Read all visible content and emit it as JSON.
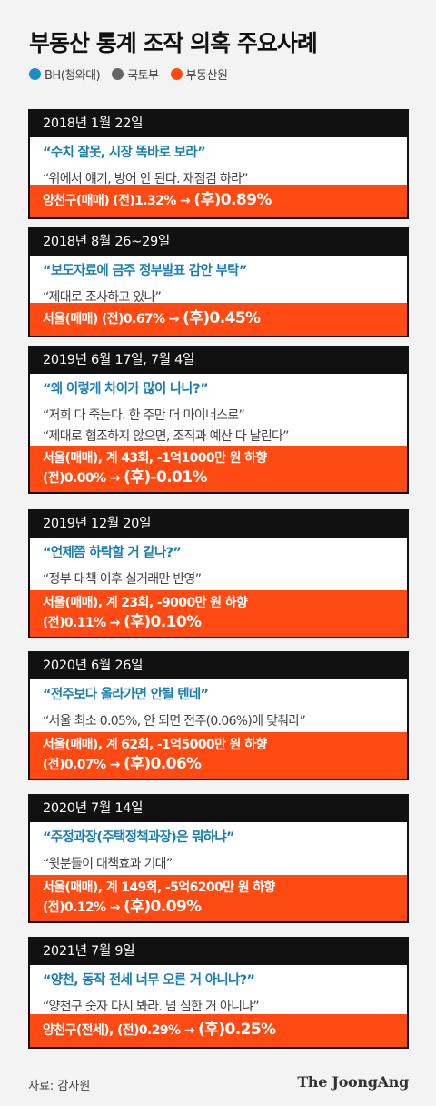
{
  "title": "부동산 통계 조작 의혹 주요사례",
  "legend": [
    {
      "label": "BH(청와대)",
      "color": "#1a8ec0"
    },
    {
      "label": "국토부",
      "color": "#666666"
    },
    {
      "label": "부동산원",
      "color": "#ff4a13"
    }
  ],
  "cases": [
    {
      "date": "2018년 1월 22일",
      "quote_bh": "“수치 잘못, 시장 똑바로 보라”",
      "quotes_gov": [
        "“위에서 얘기, 방어 안 된다. 재점검 하라”"
      ],
      "result_line1": "양천구(매매)  (전)1.32% → ",
      "result_after": "(후)0.89%",
      "result_line2": ""
    },
    {
      "date": "2018년 8월 26~29일",
      "quote_bh": "“보도자료에 금주 정부발표 감안 부탁”",
      "quotes_gov": [
        "“제대로 조사하고 있나”"
      ],
      "result_line1": "서울(매매) (전)0.67% → ",
      "result_after": "(후)0.45%",
      "result_line2": ""
    },
    {
      "date": "2019년 6월 17일, 7월 4일",
      "quote_bh": "“왜 이렇게 차이가 많이 나나?”",
      "quotes_gov": [
        "“저희 다 죽는다. 한 주만 더 마이너스로”",
        "“제대로 협조하지 않으면, 조직과 예산 다 날린다”"
      ],
      "result_line1": "서울(매매), 계 43회, -1억1000만 원 하향",
      "result_line2": "(전)0.00% → ",
      "result_after": "(후)-0.01%"
    },
    {
      "date": "2019년 12월 20일",
      "quote_bh": "“언제쯤 하락할 거 같나?”",
      "quotes_gov": [
        "“정부 대책 이후 실거래만 반영”"
      ],
      "result_line1": "서울(매매), 계 23회, -9000만 원 하향",
      "result_line2": "(전)0.11% → ",
      "result_after": "(후)0.10%"
    },
    {
      "date": "2020년 6월 26일",
      "quote_bh": "“전주보다 올라가면 안될 텐데”",
      "quotes_gov": [
        "“서울 최소 0.05%, 안 되면 전주(0.06%)에 맞춰라”"
      ],
      "result_line1": "서울(매매), 계 62회, -1억5000만 원 하향",
      "result_line2": "(전)0.07% → ",
      "result_after": "(후)0.06%"
    },
    {
      "date": "2020년 7월 14일",
      "quote_bh": "“주정과장(주택정책과장)은 뭐하냐”",
      "quotes_gov": [
        "“윗분들이 대책효과 기대”"
      ],
      "result_line1": "서울(매매), 계 149회, -5억6200만 원 하향",
      "result_line2": "(전)0.12% → ",
      "result_after": "(후)0.09%"
    },
    {
      "date": "2021년 7월 9일",
      "quote_bh": "“양천, 동작 전세 너무 오른 거 아니냐?”",
      "quotes_gov": [
        "“양천구 숫자 다시 봐라. 넘 심한 거 아니냐”"
      ],
      "result_line1": "양천구(전세), (전)0.29% → ",
      "result_after": "(후)0.25%",
      "result_line2": ""
    }
  ],
  "source": "자료: 감사원",
  "brand": "The JoongAng"
}
